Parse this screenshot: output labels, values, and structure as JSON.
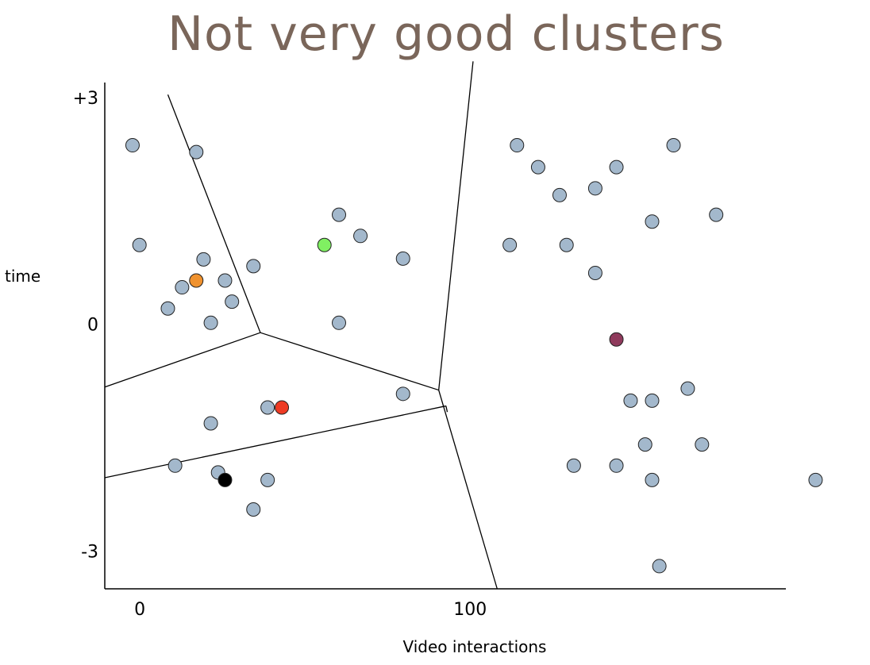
{
  "slide": {
    "title": "Not very good clusters"
  },
  "colors": {
    "title": "#7a665a",
    "point_fill": "#a3b8cc",
    "point_stroke": "#222222",
    "axis": "#000000",
    "boundary": "#000000"
  },
  "chart_data": {
    "type": "scatter",
    "title": "Not very good clusters",
    "xlabel": "Video interactions",
    "ylabel": "time",
    "xlim": [
      -10.6,
      195.6
    ],
    "ylim": [
      -3.5,
      3.2
    ],
    "x_ticks": [
      {
        "value": 0,
        "label": "0"
      },
      {
        "value": 100,
        "label": "100"
      }
    ],
    "y_ticks": [
      {
        "value": 3,
        "label": "+3"
      },
      {
        "value": 0,
        "label": "0"
      },
      {
        "value": -3,
        "label": "-3"
      }
    ],
    "grid": false,
    "points": [
      {
        "x": -2.2,
        "y": 2.37
      },
      {
        "x": 17.1,
        "y": 2.28
      },
      {
        "x": -0.1,
        "y": 1.05
      },
      {
        "x": 19.3,
        "y": 0.86
      },
      {
        "x": 12.8,
        "y": 0.49
      },
      {
        "x": 25.8,
        "y": 0.58
      },
      {
        "x": 34.4,
        "y": 0.77
      },
      {
        "x": 8.5,
        "y": 0.21
      },
      {
        "x": 27.9,
        "y": 0.3
      },
      {
        "x": 21.5,
        "y": 0.02
      },
      {
        "x": 60.3,
        "y": 1.45
      },
      {
        "x": 66.8,
        "y": 1.17
      },
      {
        "x": 79.7,
        "y": 0.87
      },
      {
        "x": 60.3,
        "y": 0.02
      },
      {
        "x": 79.7,
        "y": -0.92
      },
      {
        "x": 38.7,
        "y": -1.1
      },
      {
        "x": 21.5,
        "y": -1.31
      },
      {
        "x": 10.7,
        "y": -1.87
      },
      {
        "x": 23.7,
        "y": -1.96
      },
      {
        "x": 38.7,
        "y": -2.06
      },
      {
        "x": 34.4,
        "y": -2.45
      },
      {
        "x": 114.2,
        "y": 2.37
      },
      {
        "x": 120.6,
        "y": 2.08
      },
      {
        "x": 144.3,
        "y": 2.08
      },
      {
        "x": 161.6,
        "y": 2.37
      },
      {
        "x": 127.1,
        "y": 1.71
      },
      {
        "x": 137.9,
        "y": 1.8
      },
      {
        "x": 155.1,
        "y": 1.36
      },
      {
        "x": 174.5,
        "y": 1.45
      },
      {
        "x": 112.0,
        "y": 1.05
      },
      {
        "x": 129.2,
        "y": 1.05
      },
      {
        "x": 137.9,
        "y": 0.68
      },
      {
        "x": 165.9,
        "y": -0.85
      },
      {
        "x": 148.6,
        "y": -1.01
      },
      {
        "x": 155.1,
        "y": -1.01
      },
      {
        "x": 153.0,
        "y": -1.59
      },
      {
        "x": 170.2,
        "y": -1.59
      },
      {
        "x": 131.4,
        "y": -1.87
      },
      {
        "x": 144.3,
        "y": -1.87
      },
      {
        "x": 155.1,
        "y": -2.06
      },
      {
        "x": 204.6,
        "y": -2.06
      },
      {
        "x": 157.3,
        "y": -3.2
      }
    ],
    "centroids": [
      {
        "x": 17.1,
        "y": 0.58,
        "color": "#f0922e"
      },
      {
        "x": 55.9,
        "y": 1.05,
        "color": "#80f062"
      },
      {
        "x": 43.0,
        "y": -1.1,
        "color": "#ee3b24"
      },
      {
        "x": 25.8,
        "y": -2.06,
        "color": "#000000"
      },
      {
        "x": 144.3,
        "y": -0.2,
        "color": "#8f3a5c"
      }
    ],
    "boundaries": [
      [
        [
          8.5,
          3.04
        ],
        [
          36.5,
          -0.11
        ]
      ],
      [
        [
          -10.6,
          -0.83
        ],
        [
          36.5,
          -0.11
        ]
      ],
      [
        [
          36.5,
          -0.11
        ],
        [
          90.5,
          -0.87
        ]
      ],
      [
        [
          90.5,
          -0.87
        ],
        [
          100.9,
          3.48
        ]
      ],
      [
        [
          90.5,
          -0.87
        ],
        [
          108.2,
          -3.5
        ]
      ],
      [
        [
          -10.6,
          -2.03
        ],
        [
          92.7,
          -1.08
        ]
      ],
      [
        [
          92.7,
          -1.08
        ],
        [
          93.1,
          -1.16
        ]
      ]
    ]
  }
}
